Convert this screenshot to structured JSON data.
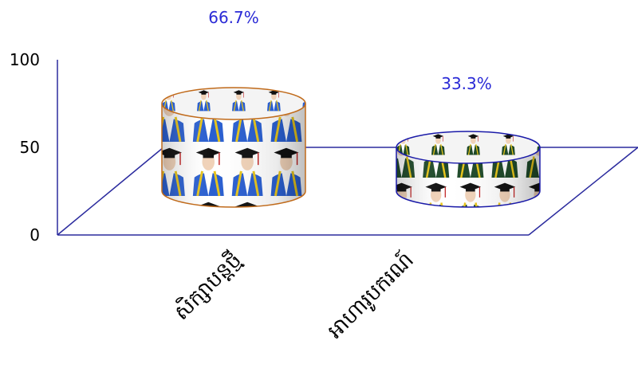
{
  "chart_data": {
    "type": "bar",
    "style": "3d-cylinder",
    "categories": [
      "សិក្សាបន្តថ្មី",
      "អាហារូបករណ៍"
    ],
    "values": [
      66.7,
      33.3
    ],
    "data_labels": [
      "66.7%",
      "33.3%"
    ],
    "title": "",
    "xlabel": "",
    "ylabel": "",
    "ylim": [
      0,
      100
    ],
    "yticks": [
      "0",
      "50",
      "100"
    ],
    "grid": true,
    "legend": "none",
    "colors": {
      "floor_lines": "#2b2b9e",
      "data_label": "#2a2ad6",
      "bar1_outline": "#c06a1a",
      "bar2_outline": "#1a1aa8",
      "gown1": "#2a5fd0",
      "gown2": "#1f4a2a",
      "stole": "#e8c51a"
    }
  }
}
